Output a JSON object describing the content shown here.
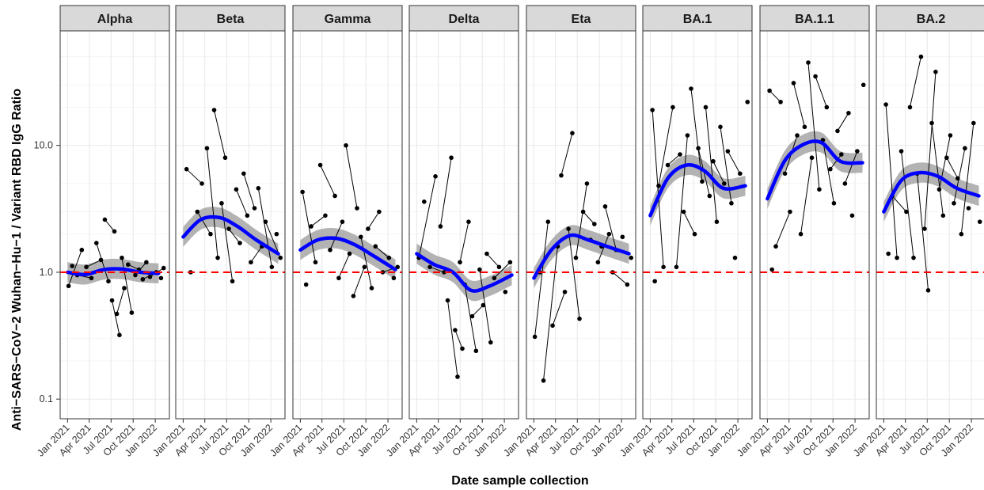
{
  "chart_data": {
    "type": "scatter",
    "xlabel": "Date sample collection",
    "ylabel": "Anti−SARS−CoV−2 Wuhan−Hu−1 / Variant RBD IgG Ratio",
    "y_scale": "log10",
    "ylim": [
      0.07,
      80
    ],
    "y_ticks": [
      0.1,
      1.0,
      10.0
    ],
    "y_tick_labels": [
      "0.1",
      "1.0",
      "10.0"
    ],
    "xlim": [
      "2020-12-01",
      "2022-03-01"
    ],
    "x_ticks": [
      "2021-01-01",
      "2021-04-01",
      "2021-07-01",
      "2021-10-01",
      "2022-01-01"
    ],
    "x_tick_labels": [
      "Jan 2021",
      "Apr 2021",
      "Jul 2021",
      "Oct 2021",
      "Jan 2022"
    ],
    "reference_line": {
      "y": 1.0,
      "color": "#ff0000",
      "style": "dashed"
    },
    "colors": {
      "points": "#000000",
      "smooth": "#0000ff",
      "ribbon": "#999999",
      "strip": "#d9d9d9",
      "grid": "#ebebeb"
    },
    "grid": true,
    "facets": [
      {
        "name": "Alpha",
        "smooth": {
          "x": [
            "2021-01-01",
            "2021-03-15",
            "2021-06-01",
            "2021-08-15",
            "2021-11-01",
            "2022-01-15"
          ],
          "y": [
            1.0,
            0.96,
            1.05,
            1.06,
            1.0,
            0.98
          ]
        },
        "points": [
          {
            "x": "2021-01-05",
            "y": 0.78
          },
          {
            "x": "2021-01-20",
            "y": 1.12
          },
          {
            "x": "2021-02-10",
            "y": 0.95
          },
          {
            "x": "2021-03-01",
            "y": 1.5
          },
          {
            "x": "2021-03-20",
            "y": 1.1
          },
          {
            "x": "2021-04-10",
            "y": 0.9
          },
          {
            "x": "2021-05-01",
            "y": 1.7
          },
          {
            "x": "2021-05-20",
            "y": 1.25
          },
          {
            "x": "2021-06-05",
            "y": 2.6
          },
          {
            "x": "2021-06-20",
            "y": 0.85
          },
          {
            "x": "2021-07-05",
            "y": 0.6
          },
          {
            "x": "2021-07-15",
            "y": 2.1
          },
          {
            "x": "2021-07-25",
            "y": 0.47
          },
          {
            "x": "2021-08-05",
            "y": 0.32
          },
          {
            "x": "2021-08-15",
            "y": 1.3
          },
          {
            "x": "2021-08-25",
            "y": 0.75
          },
          {
            "x": "2021-09-10",
            "y": 1.15
          },
          {
            "x": "2021-09-25",
            "y": 0.48
          },
          {
            "x": "2021-10-10",
            "y": 0.95
          },
          {
            "x": "2021-10-25",
            "y": 1.05
          },
          {
            "x": "2021-11-10",
            "y": 0.88
          },
          {
            "x": "2021-11-25",
            "y": 1.2
          },
          {
            "x": "2021-12-10",
            "y": 0.92
          },
          {
            "x": "2022-01-05",
            "y": 1.0
          },
          {
            "x": "2022-01-25",
            "y": 0.9
          },
          {
            "x": "2022-02-05",
            "y": 1.08
          }
        ]
      },
      {
        "name": "Beta",
        "smooth": {
          "x": [
            "2021-01-01",
            "2021-03-15",
            "2021-06-01",
            "2021-08-15",
            "2021-11-01",
            "2022-02-01"
          ],
          "y": [
            1.9,
            2.6,
            2.7,
            2.3,
            1.8,
            1.4
          ]
        },
        "points": [
          {
            "x": "2021-01-15",
            "y": 6.5
          },
          {
            "x": "2021-02-01",
            "y": 1.0
          },
          {
            "x": "2021-03-01",
            "y": 3.0
          },
          {
            "x": "2021-03-20",
            "y": 5.0
          },
          {
            "x": "2021-04-10",
            "y": 9.5
          },
          {
            "x": "2021-04-25",
            "y": 2.0
          },
          {
            "x": "2021-05-10",
            "y": 19.0
          },
          {
            "x": "2021-05-25",
            "y": 1.3
          },
          {
            "x": "2021-06-10",
            "y": 3.5
          },
          {
            "x": "2021-06-25",
            "y": 8.0
          },
          {
            "x": "2021-07-10",
            "y": 2.2
          },
          {
            "x": "2021-07-25",
            "y": 0.85
          },
          {
            "x": "2021-08-10",
            "y": 4.5
          },
          {
            "x": "2021-08-25",
            "y": 1.7
          },
          {
            "x": "2021-09-10",
            "y": 6.0
          },
          {
            "x": "2021-09-25",
            "y": 2.8
          },
          {
            "x": "2021-10-10",
            "y": 1.2
          },
          {
            "x": "2021-10-25",
            "y": 3.2
          },
          {
            "x": "2021-11-10",
            "y": 4.6
          },
          {
            "x": "2021-11-25",
            "y": 1.6
          },
          {
            "x": "2021-12-10",
            "y": 2.5
          },
          {
            "x": "2022-01-05",
            "y": 1.1
          },
          {
            "x": "2022-01-25",
            "y": 2.0
          },
          {
            "x": "2022-02-10",
            "y": 1.3
          }
        ]
      },
      {
        "name": "Gamma",
        "smooth": {
          "x": [
            "2021-01-01",
            "2021-03-15",
            "2021-06-01",
            "2021-08-15",
            "2021-11-01",
            "2022-02-01"
          ],
          "y": [
            1.5,
            1.8,
            1.85,
            1.65,
            1.35,
            1.05
          ]
        },
        "points": [
          {
            "x": "2021-01-10",
            "y": 4.3
          },
          {
            "x": "2021-01-25",
            "y": 0.8
          },
          {
            "x": "2021-02-15",
            "y": 2.3
          },
          {
            "x": "2021-03-05",
            "y": 1.2
          },
          {
            "x": "2021-03-25",
            "y": 7.0
          },
          {
            "x": "2021-04-15",
            "y": 2.8
          },
          {
            "x": "2021-05-05",
            "y": 1.5
          },
          {
            "x": "2021-05-25",
            "y": 4.0
          },
          {
            "x": "2021-06-10",
            "y": 0.9
          },
          {
            "x": "2021-06-25",
            "y": 2.5
          },
          {
            "x": "2021-07-10",
            "y": 10.0
          },
          {
            "x": "2021-07-25",
            "y": 1.4
          },
          {
            "x": "2021-08-10",
            "y": 0.65
          },
          {
            "x": "2021-08-25",
            "y": 3.2
          },
          {
            "x": "2021-09-10",
            "y": 1.9
          },
          {
            "x": "2021-09-25",
            "y": 1.1
          },
          {
            "x": "2021-10-10",
            "y": 2.2
          },
          {
            "x": "2021-10-25",
            "y": 0.75
          },
          {
            "x": "2021-11-10",
            "y": 1.6
          },
          {
            "x": "2021-11-25",
            "y": 3.0
          },
          {
            "x": "2021-12-10",
            "y": 1.0
          },
          {
            "x": "2022-01-05",
            "y": 1.3
          },
          {
            "x": "2022-01-25",
            "y": 0.9
          },
          {
            "x": "2022-02-10",
            "y": 1.1
          }
        ]
      },
      {
        "name": "Delta",
        "smooth": {
          "x": [
            "2021-01-01",
            "2021-03-15",
            "2021-06-01",
            "2021-08-15",
            "2021-11-01",
            "2022-02-01"
          ],
          "y": [
            1.4,
            1.15,
            1.0,
            0.72,
            0.78,
            0.95
          ]
        },
        "points": [
          {
            "x": "2021-01-10",
            "y": 1.3
          },
          {
            "x": "2021-02-01",
            "y": 3.6
          },
          {
            "x": "2021-02-25",
            "y": 1.1
          },
          {
            "x": "2021-03-20",
            "y": 5.7
          },
          {
            "x": "2021-04-10",
            "y": 2.3
          },
          {
            "x": "2021-04-25",
            "y": 1.0
          },
          {
            "x": "2021-05-10",
            "y": 0.6
          },
          {
            "x": "2021-05-25",
            "y": 8.0
          },
          {
            "x": "2021-06-10",
            "y": 0.35
          },
          {
            "x": "2021-06-20",
            "y": 0.15
          },
          {
            "x": "2021-06-30",
            "y": 1.2
          },
          {
            "x": "2021-07-10",
            "y": 0.25
          },
          {
            "x": "2021-07-20",
            "y": 0.8
          },
          {
            "x": "2021-08-05",
            "y": 2.5
          },
          {
            "x": "2021-08-20",
            "y": 0.45
          },
          {
            "x": "2021-09-05",
            "y": 0.24
          },
          {
            "x": "2021-09-20",
            "y": 1.05
          },
          {
            "x": "2021-10-05",
            "y": 0.55
          },
          {
            "x": "2021-10-20",
            "y": 1.4
          },
          {
            "x": "2021-11-05",
            "y": 0.28
          },
          {
            "x": "2021-11-20",
            "y": 0.9
          },
          {
            "x": "2021-12-10",
            "y": 1.1
          },
          {
            "x": "2022-01-05",
            "y": 0.7
          },
          {
            "x": "2022-01-25",
            "y": 1.2
          }
        ]
      },
      {
        "name": "Eta",
        "smooth": {
          "x": [
            "2021-01-01",
            "2021-03-15",
            "2021-06-01",
            "2021-08-15",
            "2021-11-01",
            "2022-02-01"
          ],
          "y": [
            0.9,
            1.5,
            1.95,
            1.8,
            1.6,
            1.4
          ]
        },
        "points": [
          {
            "x": "2021-01-05",
            "y": 0.31
          },
          {
            "x": "2021-01-25",
            "y": 1.0
          },
          {
            "x": "2021-02-10",
            "y": 0.14
          },
          {
            "x": "2021-03-01",
            "y": 2.5
          },
          {
            "x": "2021-03-20",
            "y": 0.38
          },
          {
            "x": "2021-04-10",
            "y": 1.6
          },
          {
            "x": "2021-04-25",
            "y": 5.8
          },
          {
            "x": "2021-05-10",
            "y": 0.7
          },
          {
            "x": "2021-05-25",
            "y": 2.2
          },
          {
            "x": "2021-06-10",
            "y": 12.5
          },
          {
            "x": "2021-06-25",
            "y": 1.3
          },
          {
            "x": "2021-07-10",
            "y": 0.43
          },
          {
            "x": "2021-07-25",
            "y": 3.0
          },
          {
            "x": "2021-08-10",
            "y": 5.0
          },
          {
            "x": "2021-08-25",
            "y": 1.8
          },
          {
            "x": "2021-09-10",
            "y": 2.4
          },
          {
            "x": "2021-09-25",
            "y": 1.2
          },
          {
            "x": "2021-10-10",
            "y": 1.6
          },
          {
            "x": "2021-10-25",
            "y": 3.3
          },
          {
            "x": "2021-11-10",
            "y": 2.0
          },
          {
            "x": "2021-11-25",
            "y": 1.0
          },
          {
            "x": "2021-12-10",
            "y": 1.5
          },
          {
            "x": "2022-01-05",
            "y": 1.9
          },
          {
            "x": "2022-01-25",
            "y": 0.8
          },
          {
            "x": "2022-02-10",
            "y": 1.3
          }
        ]
      },
      {
        "name": "BA.1",
        "smooth": {
          "x": [
            "2021-01-01",
            "2021-03-15",
            "2021-06-01",
            "2021-08-15",
            "2021-11-01",
            "2022-02-01"
          ],
          "y": [
            2.8,
            5.5,
            7.0,
            6.3,
            4.6,
            4.8
          ]
        },
        "points": [
          {
            "x": "2021-01-10",
            "y": 19.0
          },
          {
            "x": "2021-01-20",
            "y": 0.85
          },
          {
            "x": "2021-02-05",
            "y": 4.8
          },
          {
            "x": "2021-02-25",
            "y": 1.1
          },
          {
            "x": "2021-03-15",
            "y": 7.0
          },
          {
            "x": "2021-04-05",
            "y": 20.0
          },
          {
            "x": "2021-04-20",
            "y": 1.1
          },
          {
            "x": "2021-05-05",
            "y": 8.5
          },
          {
            "x": "2021-05-20",
            "y": 3.0
          },
          {
            "x": "2021-06-05",
            "y": 12.0
          },
          {
            "x": "2021-06-20",
            "y": 28.0
          },
          {
            "x": "2021-07-05",
            "y": 2.0
          },
          {
            "x": "2021-07-20",
            "y": 9.5
          },
          {
            "x": "2021-08-05",
            "y": 5.2
          },
          {
            "x": "2021-08-20",
            "y": 20.0
          },
          {
            "x": "2021-09-05",
            "y": 4.0
          },
          {
            "x": "2021-09-20",
            "y": 7.5
          },
          {
            "x": "2021-10-05",
            "y": 2.5
          },
          {
            "x": "2021-10-20",
            "y": 14.0
          },
          {
            "x": "2021-11-05",
            "y": 5.0
          },
          {
            "x": "2021-11-20",
            "y": 9.0
          },
          {
            "x": "2021-12-05",
            "y": 3.5
          },
          {
            "x": "2021-12-20",
            "y": 1.3
          },
          {
            "x": "2022-01-10",
            "y": 6.0
          },
          {
            "x": "2022-02-10",
            "y": 22.0
          }
        ]
      },
      {
        "name": "BA.1.1",
        "smooth": {
          "x": [
            "2021-01-01",
            "2021-03-15",
            "2021-06-01",
            "2021-08-15",
            "2021-11-01",
            "2022-02-01"
          ],
          "y": [
            3.8,
            7.6,
            10.2,
            10.5,
            7.5,
            7.3
          ]
        },
        "points": [
          {
            "x": "2021-01-10",
            "y": 27.0
          },
          {
            "x": "2021-01-20",
            "y": 1.05
          },
          {
            "x": "2021-02-05",
            "y": 1.6
          },
          {
            "x": "2021-02-25",
            "y": 22.0
          },
          {
            "x": "2021-03-15",
            "y": 6.0
          },
          {
            "x": "2021-04-05",
            "y": 3.0
          },
          {
            "x": "2021-04-20",
            "y": 31.0
          },
          {
            "x": "2021-05-05",
            "y": 12.0
          },
          {
            "x": "2021-05-20",
            "y": 2.0
          },
          {
            "x": "2021-06-05",
            "y": 14.0
          },
          {
            "x": "2021-06-20",
            "y": 45.0
          },
          {
            "x": "2021-07-05",
            "y": 8.0
          },
          {
            "x": "2021-07-20",
            "y": 35.0
          },
          {
            "x": "2021-08-05",
            "y": 4.5
          },
          {
            "x": "2021-08-20",
            "y": 11.0
          },
          {
            "x": "2021-09-05",
            "y": 20.0
          },
          {
            "x": "2021-09-20",
            "y": 6.5
          },
          {
            "x": "2021-10-05",
            "y": 3.5
          },
          {
            "x": "2021-10-20",
            "y": 13.0
          },
          {
            "x": "2021-11-05",
            "y": 8.5
          },
          {
            "x": "2021-11-20",
            "y": 5.0
          },
          {
            "x": "2021-12-05",
            "y": 18.0
          },
          {
            "x": "2021-12-20",
            "y": 2.8
          },
          {
            "x": "2022-01-10",
            "y": 9.0
          },
          {
            "x": "2022-02-05",
            "y": 30.0
          }
        ]
      },
      {
        "name": "BA.2",
        "smooth": {
          "x": [
            "2021-01-01",
            "2021-03-15",
            "2021-06-01",
            "2021-08-15",
            "2021-11-01",
            "2022-02-01"
          ],
          "y": [
            3.0,
            5.3,
            6.1,
            5.7,
            4.6,
            4.0
          ]
        },
        "points": [
          {
            "x": "2021-01-10",
            "y": 21.0
          },
          {
            "x": "2021-01-20",
            "y": 1.4
          },
          {
            "x": "2021-02-05",
            "y": 4.0
          },
          {
            "x": "2021-02-25",
            "y": 1.3
          },
          {
            "x": "2021-03-15",
            "y": 9.0
          },
          {
            "x": "2021-04-05",
            "y": 3.0
          },
          {
            "x": "2021-04-20",
            "y": 20.0
          },
          {
            "x": "2021-05-05",
            "y": 1.3
          },
          {
            "x": "2021-05-20",
            "y": 6.0
          },
          {
            "x": "2021-06-05",
            "y": 50.0
          },
          {
            "x": "2021-06-20",
            "y": 2.2
          },
          {
            "x": "2021-07-05",
            "y": 0.72
          },
          {
            "x": "2021-07-20",
            "y": 15.0
          },
          {
            "x": "2021-08-05",
            "y": 38.0
          },
          {
            "x": "2021-08-20",
            "y": 4.5
          },
          {
            "x": "2021-09-05",
            "y": 2.8
          },
          {
            "x": "2021-09-20",
            "y": 8.0
          },
          {
            "x": "2021-10-05",
            "y": 12.0
          },
          {
            "x": "2021-10-20",
            "y": 3.5
          },
          {
            "x": "2021-11-05",
            "y": 5.5
          },
          {
            "x": "2021-11-20",
            "y": 2.0
          },
          {
            "x": "2021-12-05",
            "y": 9.5
          },
          {
            "x": "2021-12-20",
            "y": 3.2
          },
          {
            "x": "2022-01-10",
            "y": 15.0
          },
          {
            "x": "2022-02-05",
            "y": 2.5
          }
        ]
      }
    ]
  }
}
